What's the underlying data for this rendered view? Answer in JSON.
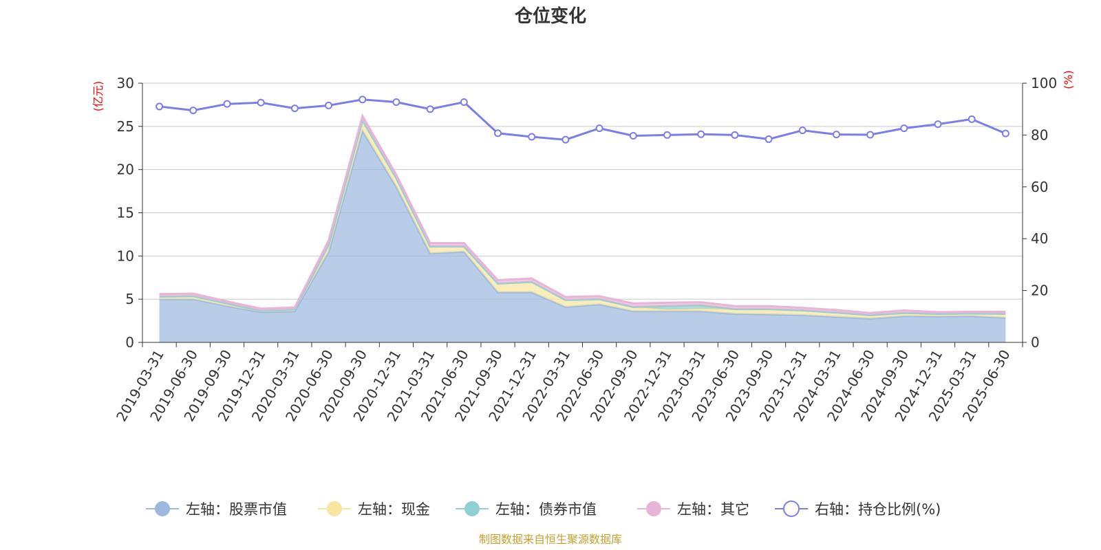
{
  "title": "仓位变化",
  "source_note": "制图数据来自恒生聚源数据库",
  "chart_data": {
    "type": "area",
    "title": "仓位变化",
    "categories": [
      "2019-03-31",
      "2019-06-30",
      "2019-09-30",
      "2019-12-31",
      "2020-03-31",
      "2020-06-30",
      "2020-09-30",
      "2020-12-31",
      "2021-03-31",
      "2021-06-30",
      "2021-09-30",
      "2021-12-31",
      "2022-03-31",
      "2022-06-30",
      "2022-09-30",
      "2022-12-31",
      "2023-03-31",
      "2023-06-30",
      "2023-09-30",
      "2023-12-31",
      "2024-03-31",
      "2024-06-30",
      "2024-09-30",
      "2024-12-31",
      "2025-03-31",
      "2025-06-30"
    ],
    "left_axis": {
      "unit_label": "(亿元)",
      "ylim": [
        0,
        30
      ],
      "ticks": [
        "0",
        "5",
        "10",
        "15",
        "20",
        "25",
        "30"
      ]
    },
    "right_axis": {
      "unit_label": "(%)",
      "ylim": [
        0,
        100
      ],
      "ticks": [
        "0",
        "20",
        "40",
        "60",
        "80",
        "100"
      ]
    },
    "series": [
      {
        "name": "左轴：股票市值",
        "type": "area",
        "axis": "left",
        "color": "#9bb8e0",
        "values": [
          5.0,
          5.0,
          4.2,
          3.5,
          3.6,
          10.5,
          24.5,
          18.0,
          10.3,
          10.5,
          5.8,
          5.8,
          4.1,
          4.4,
          3.6,
          3.6,
          3.6,
          3.3,
          3.25,
          3.15,
          2.95,
          2.75,
          3.05,
          3.0,
          3.05,
          2.85
        ]
      },
      {
        "name": "左轴：现金",
        "type": "area",
        "axis": "left",
        "color": "#f8e5a0",
        "values": [
          0.3,
          0.35,
          0.3,
          0.15,
          0.2,
          0.8,
          1.2,
          1.0,
          0.8,
          0.6,
          1.0,
          1.2,
          0.8,
          0.6,
          0.5,
          0.2,
          0.3,
          0.55,
          0.6,
          0.55,
          0.5,
          0.4,
          0.35,
          0.3,
          0.3,
          0.45
        ]
      },
      {
        "name": "左轴：债券市值",
        "type": "area",
        "axis": "left",
        "color": "#91d0d0",
        "values": [
          0,
          0,
          0,
          0,
          0,
          0,
          0,
          0,
          0,
          0,
          0,
          0,
          0,
          0,
          0,
          0.4,
          0.4,
          0,
          0,
          0,
          0,
          0,
          0,
          0,
          0,
          0
        ]
      },
      {
        "name": "左轴：其它",
        "type": "area",
        "axis": "left",
        "color": "#e8b4d8",
        "values": [
          0.3,
          0.3,
          0.25,
          0.25,
          0.25,
          0.5,
          0.5,
          0.4,
          0.4,
          0.4,
          0.4,
          0.4,
          0.35,
          0.35,
          0.4,
          0.4,
          0.35,
          0.35,
          0.35,
          0.3,
          0.3,
          0.25,
          0.3,
          0.2,
          0.2,
          0.25
        ]
      },
      {
        "name": "右轴：持仓比例(%)",
        "type": "line",
        "axis": "right",
        "color": "#7b7de8",
        "values": [
          91,
          89.5,
          92,
          92.5,
          90.3,
          91.4,
          93.7,
          92.7,
          90,
          92.7,
          80.7,
          79.3,
          78.2,
          82.6,
          79.7,
          80,
          80.3,
          80,
          78.4,
          81.8,
          80.2,
          80.1,
          82.6,
          84.2,
          86.1,
          80.6
        ]
      }
    ],
    "grid": true,
    "legend_position": "bottom"
  }
}
